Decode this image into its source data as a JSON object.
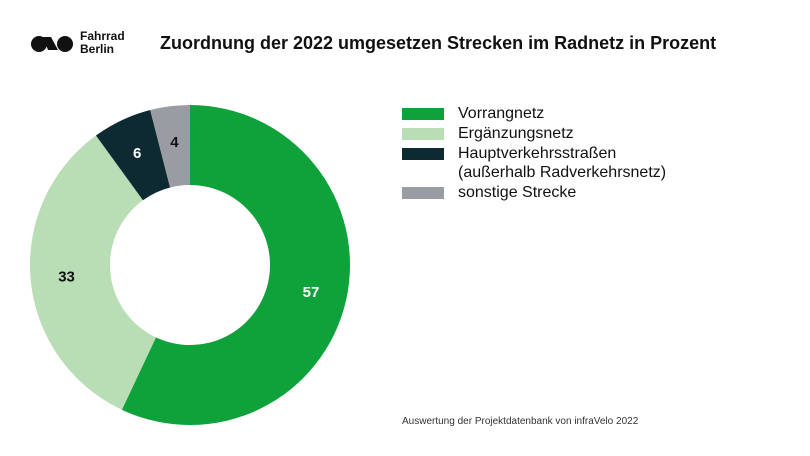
{
  "brand": {
    "line1": "Fahrrad",
    "line2": "Berlin",
    "icon": "bicycle-logo-icon"
  },
  "source": "Auswertung der Projektdatenbank von infraVelo 2022",
  "chart_data": {
    "type": "pie",
    "style": "donut",
    "title": "Zuordnung der 2022 umgesetzen Strecken im Radnetz in Prozent",
    "legend_position": "right",
    "slices": [
      {
        "name": "Vorrangnetz",
        "value": 57,
        "color": "#0fa23b",
        "label_color": "#ffffff"
      },
      {
        "name": "Ergänzungsnetz",
        "value": 33,
        "color": "#b9ddb4",
        "label_color": "#111111"
      },
      {
        "name": "Hauptverkehrsstraßen (außerhalb Radverkehrsnetz)",
        "name_lines": [
          "Hauptverkehrsstraßen",
          "(außerhalb Radverkehrsnetz)"
        ],
        "value": 6,
        "color": "#0d2a33",
        "label_color": "#ffffff"
      },
      {
        "name": "sonstige Strecke",
        "value": 4,
        "color": "#9a9ca3",
        "label_color": "#111111"
      }
    ]
  }
}
